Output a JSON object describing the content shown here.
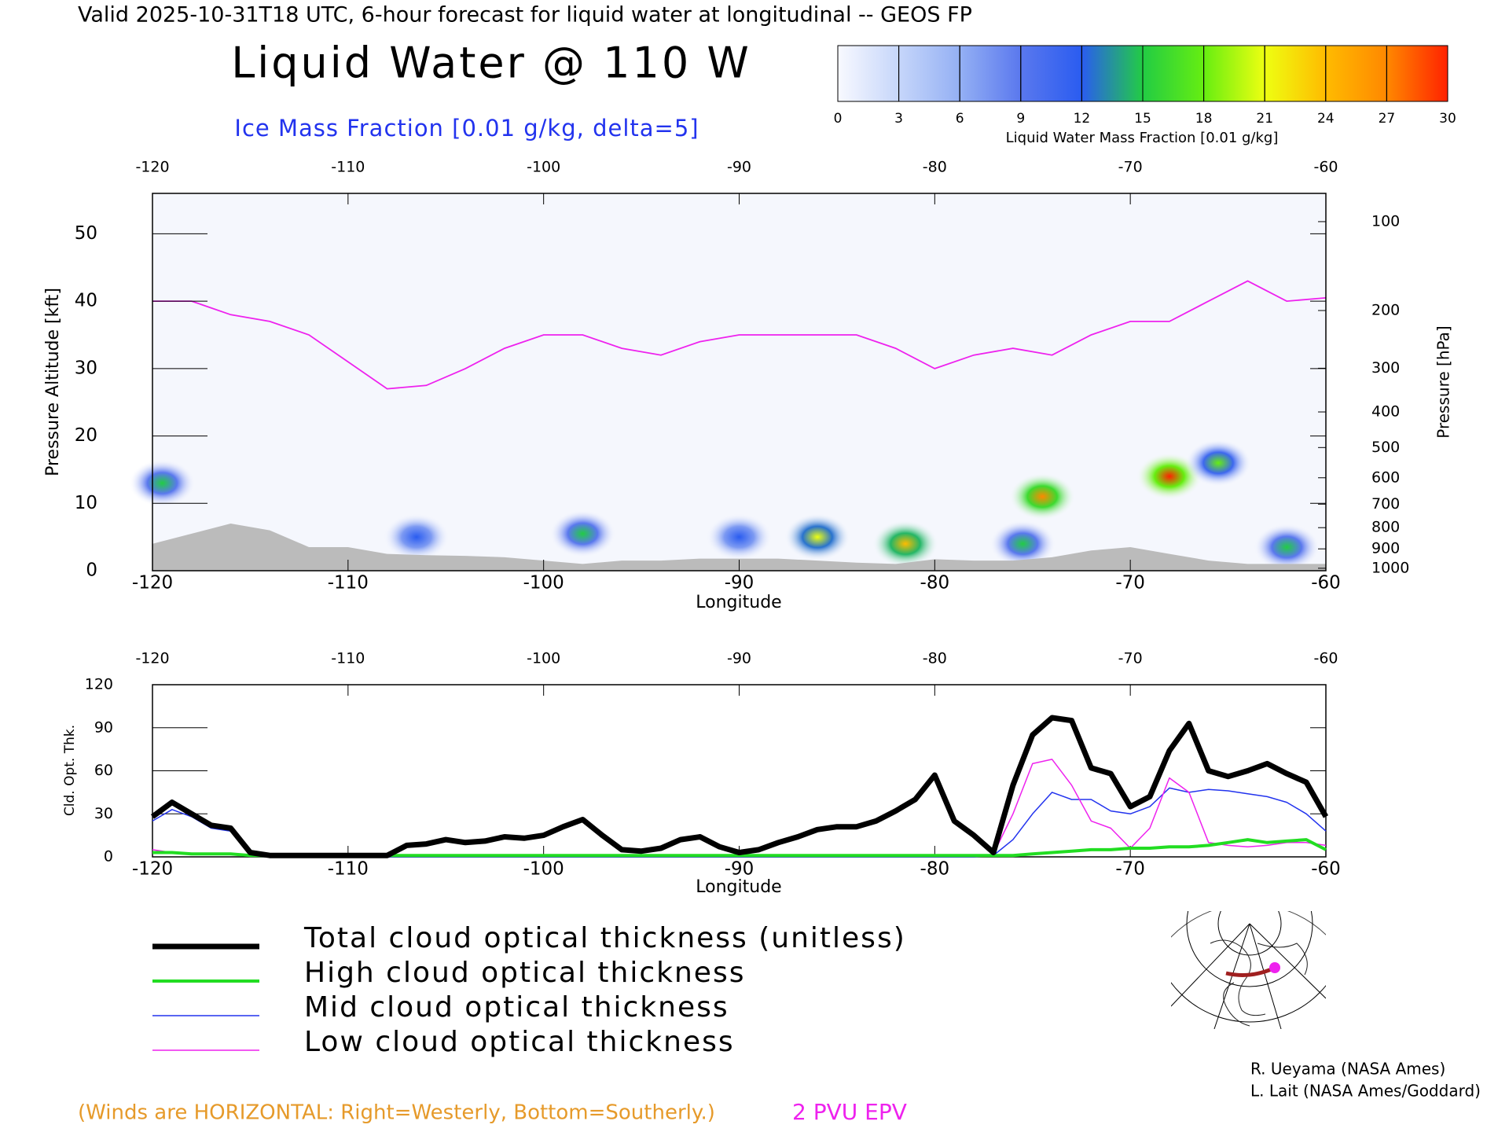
{
  "header": {
    "title": "Valid 2025-10-31T18 UTC, 6-hour forecast for liquid water at longitudinal -- GEOS FP"
  },
  "credits": [
    "R. Ueyama (NASA Ames)",
    "L. Lait (NASA Ames/Goddard)"
  ],
  "note": "(Winds are HORIZONTAL: Right=Westerly, Bottom=Southerly.)",
  "chart_data": [
    {
      "type": "cross-section",
      "title": "Liquid Water @ 110 W",
      "subtitle": "Ice Mass Fraction [0.01 g/kg, delta=5]",
      "x_label": "Longitude",
      "y_label": "Pressure Altitude [kft]",
      "y2_label": "Pressure [hPa]",
      "xlim": [
        -120,
        -60
      ],
      "xticks": [
        -120,
        -110,
        -100,
        -90,
        -80,
        -70,
        -60
      ],
      "ylim": [
        0,
        56
      ],
      "yticks": [
        0,
        10,
        20,
        30,
        40,
        50
      ],
      "y2scale": "pressure-altitude",
      "y2ticks": [
        100,
        200,
        300,
        400,
        500,
        600,
        700,
        800,
        900,
        1000
      ],
      "colorbar": {
        "label": "Liquid Water Mass Fraction [0.01 g/kg]",
        "ticks": [
          0,
          3,
          6,
          9,
          12,
          15,
          18,
          21,
          24,
          27,
          30
        ],
        "colors": [
          "#f8f9ff",
          "#c6d6fa",
          "#94b0f4",
          "#5a78ee",
          "#2a5cf0",
          "#22cc44",
          "#66ee11",
          "#eeff11",
          "#ffbb00",
          "#ff8800",
          "#ff2200"
        ]
      },
      "features": [
        {
          "lon": -74.5,
          "alt": 11,
          "value": 27
        },
        {
          "lon": -68,
          "alt": 14,
          "value": 30
        },
        {
          "lon": -81.5,
          "alt": 4,
          "value": 24
        },
        {
          "lon": -86,
          "alt": 5,
          "value": 21
        },
        {
          "lon": -98,
          "alt": 5.5,
          "value": 15
        },
        {
          "lon": -75.5,
          "alt": 4,
          "value": 15
        },
        {
          "lon": -62,
          "alt": 3.5,
          "value": 15
        },
        {
          "lon": -65.5,
          "alt": 16,
          "value": 18
        },
        {
          "lon": -106.5,
          "alt": 5,
          "value": 12
        },
        {
          "lon": -119.5,
          "alt": 13,
          "value": 15
        },
        {
          "lon": -90,
          "alt": 5,
          "value": 12
        }
      ],
      "tropopause": {
        "name": "2 PVU EPV",
        "color": "#ee22ee",
        "x": [
          -120,
          -118,
          -116,
          -114,
          -112,
          -110,
          -108,
          -106,
          -104,
          -102,
          -100,
          -98,
          -96,
          -94,
          -92,
          -90,
          -88,
          -86,
          -84,
          -82,
          -80,
          -78,
          -76,
          -74,
          -72,
          -70,
          -68,
          -66,
          -64,
          -62,
          -60
        ],
        "values": [
          40,
          40,
          38,
          37,
          35,
          31,
          27,
          27.5,
          30,
          33,
          35,
          35,
          33,
          32,
          34,
          35,
          35,
          35,
          35,
          33,
          30,
          32,
          33,
          32,
          35,
          37,
          37,
          40,
          43,
          40,
          40.5
        ]
      },
      "terrain": {
        "color": "#bbbbbb",
        "x": [
          -120,
          -118,
          -116,
          -114,
          -112,
          -110,
          -108,
          -106,
          -104,
          -102,
          -100,
          -98,
          -96,
          -94,
          -92,
          -90,
          -88,
          -86,
          -84,
          -82,
          -80,
          -78,
          -76,
          -74,
          -72,
          -70,
          -68,
          -66,
          -64,
          -62,
          -60
        ],
        "values": [
          4,
          5.5,
          7,
          6,
          3.5,
          3.5,
          2.5,
          2.3,
          2.2,
          2,
          1.5,
          1,
          1.5,
          1.5,
          1.8,
          1.8,
          1.8,
          1.5,
          1.2,
          1,
          1.7,
          1.5,
          1.5,
          2,
          3,
          3.5,
          2.5,
          1.5,
          1,
          1,
          1
        ]
      }
    },
    {
      "type": "line",
      "x_label": "Longitude",
      "y_label": "Cld. Opt. Thk.",
      "xlim": [
        -120,
        -60
      ],
      "xticks": [
        -120,
        -110,
        -100,
        -90,
        -80,
        -70,
        -60
      ],
      "ylim": [
        0,
        120
      ],
      "yticks": [
        0,
        30,
        60,
        90,
        120
      ],
      "x": [
        -120,
        -119,
        -118,
        -117,
        -116,
        -115,
        -114,
        -113,
        -112,
        -111,
        -110,
        -109,
        -108,
        -107,
        -106,
        -105,
        -104,
        -103,
        -102,
        -101,
        -100,
        -99,
        -98,
        -97,
        -96,
        -95,
        -94,
        -93,
        -92,
        -91,
        -90,
        -89,
        -88,
        -87,
        -86,
        -85,
        -84,
        -83,
        -82,
        -81,
        -80,
        -79,
        -78,
        -77,
        -76,
        -75,
        -74,
        -73,
        -72,
        -71,
        -70,
        -69,
        -68,
        -67,
        -66,
        -65,
        -64,
        -63,
        -62,
        -61,
        -60
      ],
      "series": [
        {
          "name": "Total cloud optical thickness (unitless)",
          "color": "#000000",
          "values": [
            28,
            38,
            30,
            22,
            20,
            3,
            1,
            1,
            1,
            1,
            1,
            1,
            1,
            8,
            9,
            12,
            10,
            11,
            14,
            13,
            15,
            21,
            26,
            15,
            5,
            4,
            6,
            12,
            14,
            7,
            3,
            5,
            10,
            14,
            19,
            21,
            21,
            25,
            32,
            40,
            57,
            25,
            15,
            3,
            50,
            85,
            97,
            95,
            62,
            58,
            35,
            42,
            74,
            93,
            60,
            56,
            60,
            65,
            58,
            52,
            28
          ]
        },
        {
          "name": "High cloud optical thickness",
          "color": "#22dd22",
          "values": [
            3,
            3,
            2,
            2,
            2,
            1,
            1,
            1,
            1,
            1,
            1,
            1,
            1,
            1,
            1,
            1,
            1,
            1,
            1,
            1,
            1,
            1,
            1,
            1,
            1,
            1,
            1,
            1,
            1,
            1,
            1,
            1,
            1,
            1,
            1,
            1,
            1,
            1,
            1,
            1,
            1,
            1,
            1,
            1,
            1,
            2,
            3,
            4,
            5,
            5,
            6,
            6,
            7,
            7,
            8,
            10,
            12,
            10,
            11,
            12,
            5
          ]
        },
        {
          "name": "Mid cloud optical thickness",
          "color": "#2233ee",
          "values": [
            25,
            33,
            28,
            20,
            18,
            2,
            1,
            1,
            1,
            1,
            0,
            0,
            0,
            0,
            0,
            0,
            0,
            0,
            0,
            0,
            0,
            0,
            0,
            0,
            0,
            0,
            0,
            0,
            0,
            0,
            0,
            0,
            0,
            0,
            0,
            0,
            0,
            0,
            0,
            0,
            0,
            0,
            0,
            1,
            12,
            30,
            45,
            40,
            40,
            32,
            30,
            35,
            48,
            45,
            47,
            46,
            44,
            42,
            38,
            30,
            18
          ]
        },
        {
          "name": "Low cloud optical thickness",
          "color": "#ee22ee",
          "values": [
            5,
            3,
            2,
            2,
            2,
            1,
            1,
            1,
            1,
            1,
            1,
            1,
            1,
            8,
            9,
            12,
            10,
            11,
            14,
            13,
            15,
            21,
            26,
            15,
            5,
            4,
            6,
            12,
            14,
            7,
            3,
            5,
            10,
            14,
            19,
            21,
            21,
            25,
            32,
            40,
            57,
            25,
            15,
            2,
            30,
            65,
            68,
            50,
            25,
            20,
            6,
            20,
            55,
            45,
            10,
            8,
            7,
            8,
            10,
            10,
            8
          ]
        }
      ]
    }
  ]
}
